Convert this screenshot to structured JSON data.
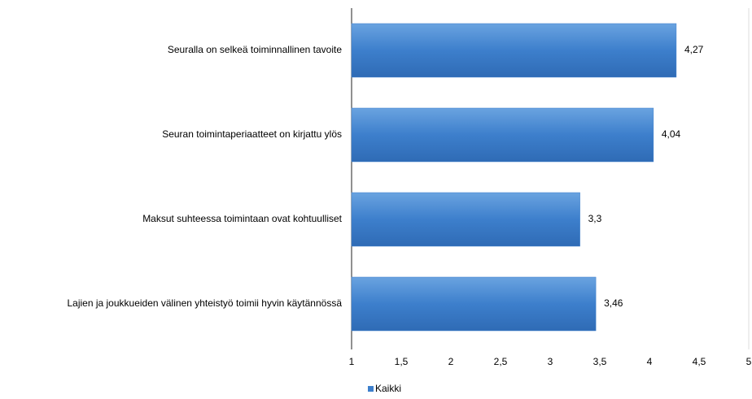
{
  "chart_data": {
    "type": "bar",
    "orientation": "horizontal",
    "categories": [
      "Seuralla on selkeä toiminnallinen tavoite",
      "Seuran toimintaperiaatteet on kirjattu ylös",
      "Maksut suhteessa toimintaan ovat kohtuulliset",
      "Lajien ja joukkueiden välinen yhteistyö toimii hyvin käytännössä"
    ],
    "series": [
      {
        "name": "Kaikki",
        "color": "#3d7fcc",
        "values": [
          4.27,
          4.04,
          3.3,
          3.46
        ],
        "value_labels": [
          "4,27",
          "4,04",
          "3,3",
          "3,46"
        ]
      }
    ],
    "xlim": [
      1,
      5
    ],
    "xticks": [
      1,
      {
        "value": 1.5,
        "label": "1,5"
      },
      2,
      {
        "value": 2.5,
        "label": "2,5"
      },
      3,
      {
        "value": 3.5,
        "label": "3,5"
      },
      4,
      {
        "value": 4.5,
        "label": "4,5"
      },
      5
    ],
    "legend": "bottom-left",
    "grid": false
  }
}
